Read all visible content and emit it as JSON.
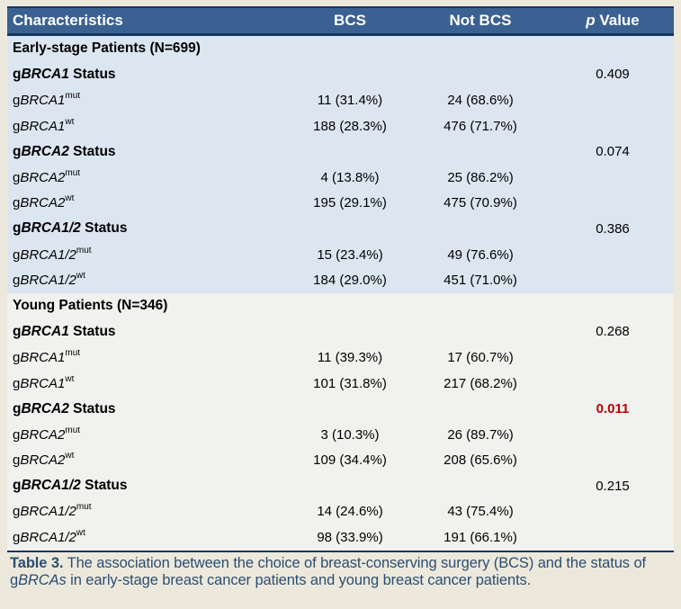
{
  "colors": {
    "page_bg": "#ece9dc",
    "header_bg": "#3a6191",
    "frame_line": "#17365d",
    "early_bg": "#dce6f1",
    "young_bg": "#f1f1ef",
    "highlight": "#c00000",
    "caption_color": "#2d4d71"
  },
  "header": {
    "characteristics": "Characteristics",
    "bcs": "BCS",
    "not_bcs": "Not BCS",
    "p_italic": "p",
    "p_rest": " Value"
  },
  "table": {
    "rows": [
      {
        "type": "section",
        "g": "Early-stage Patients (N=699)"
      },
      {
        "type": "status",
        "g": "g",
        "gene": "BRCA1",
        "suffix": " Status",
        "p": "0.409"
      },
      {
        "type": "data",
        "g": "g",
        "gene": "BRCA1",
        "sup": "mut",
        "bcs": "11 (31.4%)",
        "not_bcs": "24 (68.6%)"
      },
      {
        "type": "data",
        "g": "g",
        "gene": "BRCA1",
        "sup": "wt",
        "bcs": "188 (28.3%)",
        "not_bcs": "476 (71.7%)"
      },
      {
        "type": "status",
        "g": "g",
        "gene": "BRCA2",
        "suffix": " Status",
        "p": "0.074"
      },
      {
        "type": "data",
        "g": "g",
        "gene": "BRCA2",
        "sup": "mut",
        "bcs": "4 (13.8%)",
        "not_bcs": "25 (86.2%)"
      },
      {
        "type": "data",
        "g": "g",
        "gene": "BRCA2",
        "sup": "wt",
        "bcs": "195 (29.1%)",
        "not_bcs": "475 (70.9%)"
      },
      {
        "type": "status",
        "g": "g",
        "gene": "BRCA1/2",
        "suffix": " Status",
        "p": "0.386"
      },
      {
        "type": "data",
        "g": "g",
        "gene": "BRCA1/2",
        "sup": "mut",
        "bcs": "15 (23.4%)",
        "not_bcs": "49 (76.6%)"
      },
      {
        "type": "data",
        "g": "g",
        "gene": "BRCA1/2",
        "sup": "wt",
        "bcs": "184 (29.0%)",
        "not_bcs": "451 (71.0%)"
      },
      {
        "type": "section",
        "g": "Young Patients (N=346)"
      },
      {
        "type": "status",
        "g": "g",
        "gene": "BRCA1",
        "suffix": " Status",
        "p": "0.268"
      },
      {
        "type": "data",
        "g": "g",
        "gene": "BRCA1",
        "sup": "mut",
        "bcs": "11 (39.3%)",
        "not_bcs": "17 (60.7%)"
      },
      {
        "type": "data",
        "g": "g",
        "gene": "BRCA1",
        "sup": "wt",
        "bcs": "101 (31.8%)",
        "not_bcs": "217 (68.2%)"
      },
      {
        "type": "status",
        "g": "g",
        "gene": "BRCA2",
        "suffix": " Status",
        "p": "0.011",
        "p_variant": "highlight"
      },
      {
        "type": "data",
        "g": "g",
        "gene": "BRCA2",
        "sup": "mut",
        "bcs": "3 (10.3%)",
        "not_bcs": "26 (89.7%)"
      },
      {
        "type": "data",
        "g": "g",
        "gene": "BRCA2",
        "sup": "wt",
        "bcs": "109 (34.4%)",
        "not_bcs": "208 (65.6%)"
      },
      {
        "type": "status",
        "g": "g",
        "gene": "BRCA1/2",
        "suffix": " Status",
        "p": "0.215"
      },
      {
        "type": "data",
        "g": "g",
        "gene": "BRCA1/2",
        "sup": "mut",
        "bcs": "14 (24.6%)",
        "not_bcs": "43 (75.4%)"
      },
      {
        "type": "data",
        "g": "g",
        "gene": "BRCA1/2",
        "sup": "wt",
        "bcs": "98 (33.9%)",
        "not_bcs": "191 (66.1%)"
      }
    ]
  },
  "caption": {
    "label": "Table 3.",
    "before_gene": " The association between the choice of breast-conserving surgery (BCS) and the status of g",
    "gene": "BRCAs",
    "after_gene": " in early-stage breast cancer patients and young breast cancer patients."
  }
}
